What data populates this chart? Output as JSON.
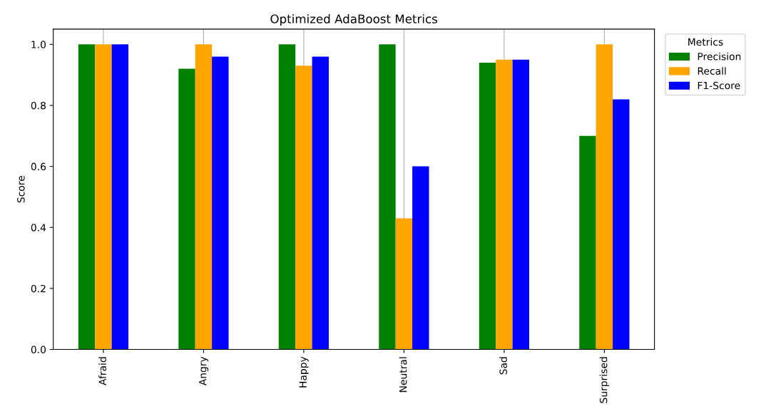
{
  "chart_data": {
    "type": "bar",
    "title": "Optimized AdaBoost Metrics",
    "ylabel": "Score",
    "legend_title": "Metrics",
    "categories": [
      "Afraid",
      "Angry",
      "Happy",
      "Neutral",
      "Sad",
      "Surprised"
    ],
    "series": [
      {
        "name": "Precision",
        "color": "#008000",
        "values": [
          1.0,
          0.92,
          1.0,
          1.0,
          0.94,
          0.7
        ]
      },
      {
        "name": "Recall",
        "color": "#ffa500",
        "values": [
          1.0,
          1.0,
          0.93,
          0.43,
          0.95,
          1.0
        ]
      },
      {
        "name": "F1-Score",
        "color": "#0000ff",
        "values": [
          1.0,
          0.96,
          0.96,
          0.6,
          0.95,
          0.82
        ]
      }
    ],
    "ylim": [
      0,
      1.05
    ],
    "yticks": [
      {
        "value": 0,
        "label": "0.0"
      },
      {
        "value": 0.2,
        "label": "0.2"
      },
      {
        "value": 0.4,
        "label": "0.4"
      },
      {
        "value": 0.6,
        "label": "0.6"
      },
      {
        "value": 0.8,
        "label": "0.8"
      },
      {
        "value": 1,
        "label": "1.0"
      }
    ],
    "grid": "x",
    "legend": "top right"
  }
}
